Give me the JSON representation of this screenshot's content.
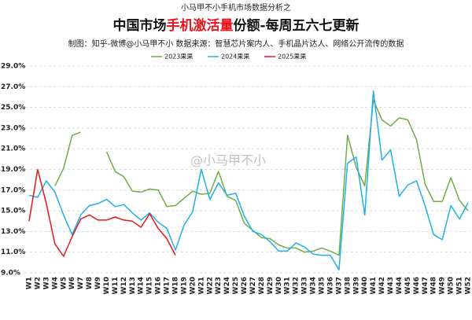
{
  "chart_data": {
    "type": "line",
    "kicker": "小马甲不小手机市场数据分析之",
    "title_parts": [
      "中国市场",
      "手机激活量",
      "份额-每周五六七更新"
    ],
    "title_colors": [
      "#111111",
      "#e8141b",
      "#111111"
    ],
    "subtitle": "制图：知乎-微博@小马甲不小  数据来源：智慧芯片案内人、手机晶片达人、网络公开流传的数据",
    "watermark": "@小马甲不小",
    "categories": [
      "W1",
      "W2",
      "W3",
      "W4",
      "W5",
      "W6",
      "W7",
      "W8",
      "W9",
      "W10",
      "W11",
      "W12",
      "W13",
      "W14",
      "W15",
      "W16",
      "W17",
      "W18",
      "W19",
      "W20",
      "W21",
      "W22",
      "W23",
      "W24",
      "W25",
      "W26",
      "W27",
      "W28",
      "W29",
      "W30",
      "W31",
      "W32",
      "W33",
      "W34",
      "W35",
      "W36",
      "W37",
      "W38",
      "W39",
      "W40",
      "W41",
      "W42",
      "W43",
      "W44",
      "W45",
      "W46",
      "W47",
      "W48",
      "W49",
      "W50",
      "W51",
      "W52"
    ],
    "series": [
      {
        "name": "2023果果",
        "color": "#70ad47",
        "values": [
          null,
          null,
          null,
          17.4,
          19.1,
          22.3,
          22.6,
          null,
          null,
          20.7,
          18.8,
          18.3,
          16.9,
          16.8,
          17.1,
          17.0,
          15.4,
          15.5,
          16.2,
          16.9,
          16.6,
          16.7,
          18.8,
          16.4,
          16.0,
          13.8,
          13.1,
          12.4,
          12.3,
          11.7,
          11.4,
          11.4,
          11.0,
          11.1,
          11.4,
          11.1,
          10.7,
          22.3,
          19.2,
          17.4,
          25.7,
          23.8,
          23.2,
          24.0,
          23.8,
          21.9,
          17.6,
          15.9,
          15.9,
          18.2,
          16.0,
          15.0
        ]
      },
      {
        "name": "2024果果",
        "color": "#1fb0e6",
        "values": [
          16.5,
          16.3,
          17.9,
          16.8,
          14.6,
          12.7,
          14.6,
          15.5,
          15.7,
          16.1,
          15.4,
          15.6,
          14.8,
          14.1,
          14.8,
          13.9,
          13.3,
          11.2,
          13.6,
          14.9,
          19.0,
          16.1,
          17.7,
          16.5,
          16.7,
          14.5,
          13.0,
          12.7,
          12.0,
          11.1,
          11.1,
          11.9,
          11.5,
          10.8,
          10.7,
          10.7,
          9.3,
          19.6,
          20.2,
          14.6,
          26.6,
          19.9,
          20.9,
          16.4,
          17.5,
          17.9,
          15.5,
          12.7,
          12.2,
          15.5,
          14.2,
          15.8
        ]
      },
      {
        "name": "2025果果",
        "color": "#e8141b",
        "values": [
          14.0,
          19.0,
          15.7,
          11.8,
          10.6,
          12.5,
          14.2,
          14.6,
          14.1,
          14.1,
          14.4,
          14.1,
          14.0,
          13.4,
          14.7,
          13.3,
          12.3,
          10.7,
          null,
          null,
          null,
          null,
          null,
          null,
          null,
          null,
          null,
          null,
          null,
          null,
          null,
          null,
          null,
          null,
          null,
          null,
          null,
          null,
          null,
          null,
          null,
          null,
          null,
          null,
          null,
          null,
          null,
          null,
          null,
          null,
          null,
          null
        ]
      }
    ],
    "ylim": [
      9.0,
      29.0
    ],
    "yticks": [
      {
        "value": 9.0,
        "label": "9.0%"
      },
      {
        "value": 11.0,
        "label": "11.0%"
      },
      {
        "value": 13.0,
        "label": "13.0%"
      },
      {
        "value": 15.0,
        "label": "15.0%"
      },
      {
        "value": 17.0,
        "label": "17.0%"
      },
      {
        "value": 19.0,
        "label": "19.0%"
      },
      {
        "value": 21.0,
        "label": "21.0%"
      },
      {
        "value": 23.0,
        "label": "23.0%"
      },
      {
        "value": 25.0,
        "label": "25.0%"
      },
      {
        "value": 27.0,
        "label": "27.0%"
      },
      {
        "value": 29.0,
        "label": "29.0%"
      }
    ],
    "grid": true,
    "legend": "top"
  }
}
